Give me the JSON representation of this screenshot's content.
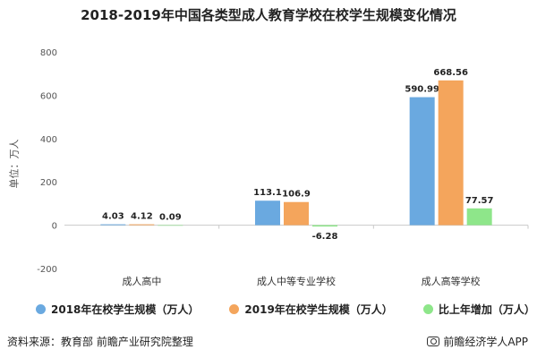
{
  "chart_data": {
    "type": "bar",
    "title": "2018-2019年中国各类型成人教育学校在校学生规模变化情况",
    "ylabel": "单位：万人",
    "xlabel": "",
    "ylim": [
      -200,
      800
    ],
    "yticks": [
      -200,
      0,
      200,
      400,
      600,
      800
    ],
    "categories": [
      "成人高中",
      "成人中等专业学校",
      "成人高等学校"
    ],
    "series": [
      {
        "name": "2018年在校学生规模（万人）",
        "color": "#6aa9e0",
        "values": [
          4.03,
          113.1,
          590.99
        ],
        "labels": [
          "4.03",
          "113.1",
          "590.99"
        ]
      },
      {
        "name": "2019年在校学生规模（万人）",
        "color": "#f4a55c",
        "values": [
          4.12,
          106.9,
          668.56
        ],
        "labels": [
          "4.12",
          "106.9",
          "668.56"
        ]
      },
      {
        "name": "比上年增加（万人）",
        "color": "#8ee68a",
        "values": [
          0.09,
          -6.28,
          77.57
        ],
        "labels": [
          "0.09",
          "-6.28",
          "77.57"
        ]
      }
    ],
    "legend_position": "bottom",
    "grid": false
  },
  "footer": {
    "source": "资料来源：教育部 前瞻产业研究院整理",
    "app": "前瞻经济学人APP"
  }
}
